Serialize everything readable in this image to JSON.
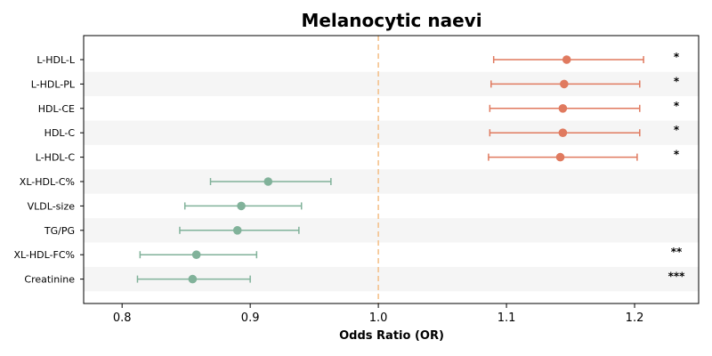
{
  "chart_data": {
    "type": "forest",
    "title": "Melanocytic naevi",
    "xlabel": "Odds Ratio (OR)",
    "ylabel": "",
    "xlim": [
      0.77,
      1.25
    ],
    "xticks": [
      "0.8",
      "0.9",
      "1.0",
      "1.1",
      "1.2"
    ],
    "reference_line": 1.0,
    "colors": {
      "increased": "#e07a5f",
      "decreased": "#81b29a",
      "reference": "#f4c18c",
      "stripe": "#f5f5f5"
    },
    "rows": [
      {
        "label": "L-HDL-L",
        "or": 1.147,
        "lower": 1.09,
        "upper": 1.207,
        "sig": "*",
        "group": "increased"
      },
      {
        "label": "L-HDL-PL",
        "or": 1.145,
        "lower": 1.088,
        "upper": 1.204,
        "sig": "*",
        "group": "increased"
      },
      {
        "label": "HDL-CE",
        "or": 1.144,
        "lower": 1.087,
        "upper": 1.204,
        "sig": "*",
        "group": "increased"
      },
      {
        "label": "HDL-C",
        "or": 1.144,
        "lower": 1.087,
        "upper": 1.204,
        "sig": "*",
        "group": "increased"
      },
      {
        "label": "L-HDL-C",
        "or": 1.142,
        "lower": 1.086,
        "upper": 1.202,
        "sig": "*",
        "group": "increased"
      },
      {
        "label": "XL-HDL-C%",
        "or": 0.914,
        "lower": 0.869,
        "upper": 0.963,
        "sig": "",
        "group": "decreased"
      },
      {
        "label": "VLDL-size",
        "or": 0.893,
        "lower": 0.849,
        "upper": 0.94,
        "sig": "",
        "group": "decreased"
      },
      {
        "label": "TG/PG",
        "or": 0.89,
        "lower": 0.845,
        "upper": 0.938,
        "sig": "",
        "group": "decreased"
      },
      {
        "label": "XL-HDL-FC%",
        "or": 0.858,
        "lower": 0.814,
        "upper": 0.905,
        "sig": "**",
        "group": "decreased"
      },
      {
        "label": "Creatinine",
        "or": 0.855,
        "lower": 0.812,
        "upper": 0.9,
        "sig": "***",
        "group": "decreased"
      }
    ]
  }
}
